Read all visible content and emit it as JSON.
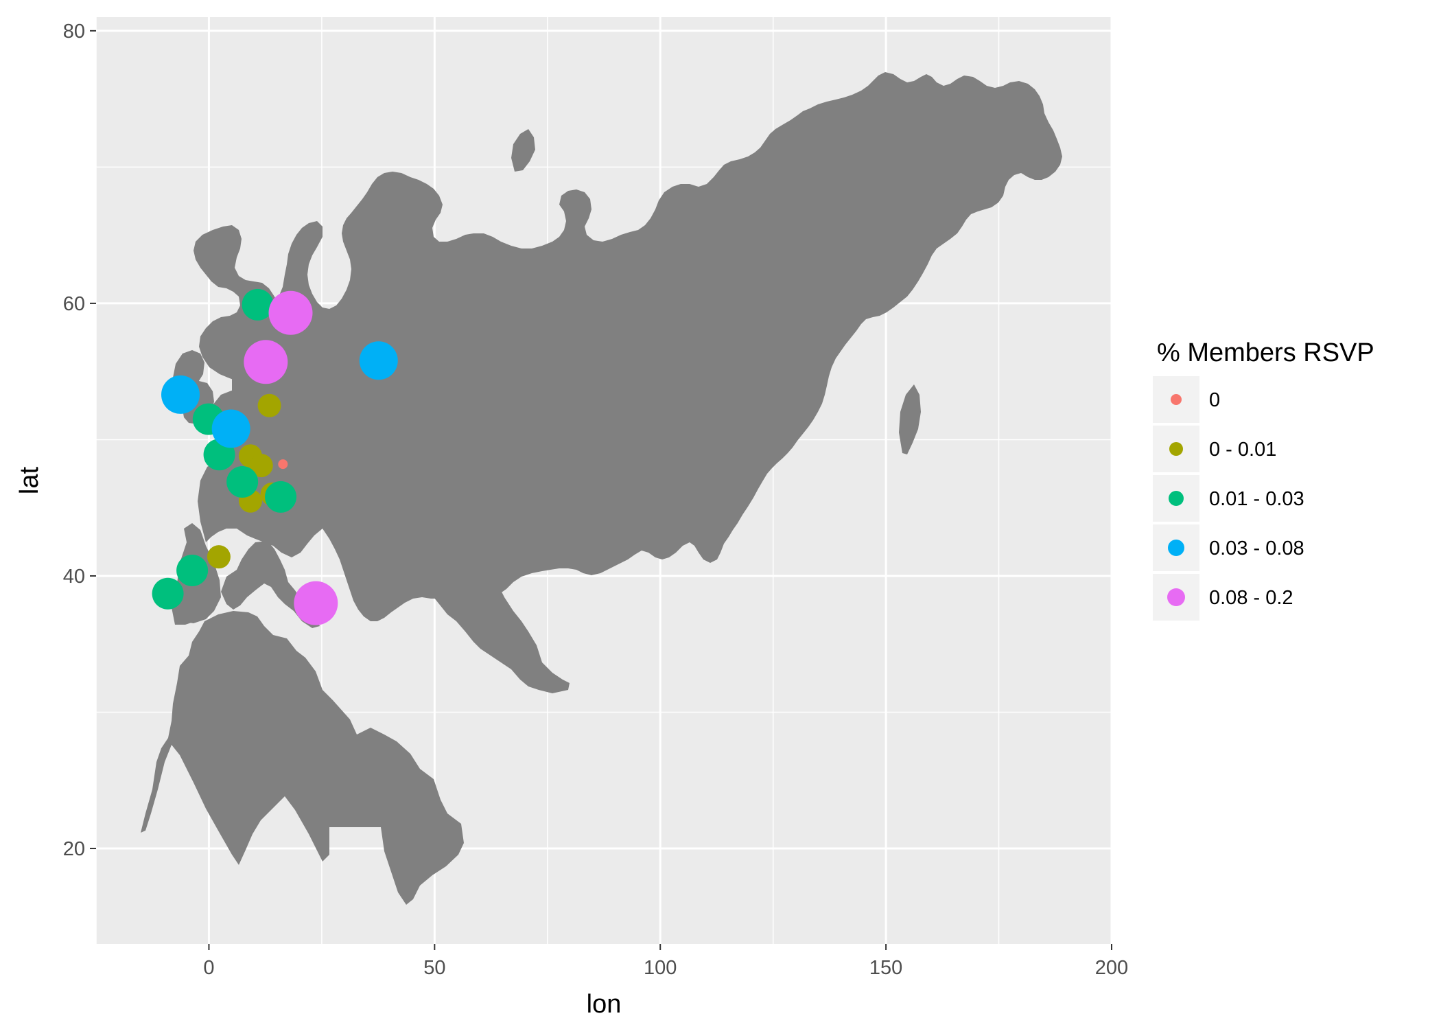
{
  "chart_data": {
    "type": "scatter",
    "xlabel": "lon",
    "ylabel": "lat",
    "xlim": [
      -25,
      200
    ],
    "ylim": [
      13,
      81
    ],
    "x_ticks": [
      0,
      50,
      100,
      150,
      200
    ],
    "x_minor_ticks": [
      -25,
      25,
      75,
      125,
      175
    ],
    "y_ticks": [
      20,
      40,
      60,
      80
    ],
    "y_minor_ticks": [
      30,
      50,
      70
    ],
    "grid": true,
    "background": "#ebebeb",
    "land_color": "#808080",
    "legend": {
      "title": "% Members RSVP",
      "placement": "right",
      "entries": [
        {
          "label": "0",
          "color": "#f8766d",
          "size": 1
        },
        {
          "label": "0 - 0.01",
          "color": "#a3a500",
          "size": 2
        },
        {
          "label": "0.01 - 0.03",
          "color": "#00bf7d",
          "size": 3
        },
        {
          "label": "0.03 - 0.08",
          "color": "#00b0f6",
          "size": 4
        },
        {
          "label": "0.08 - 0.2",
          "color": "#e76bf3",
          "size": 5
        }
      ]
    },
    "points": [
      {
        "lon": 16.4,
        "lat": 48.2,
        "group": 0
      },
      {
        "lon": 13.4,
        "lat": 52.5,
        "group": 1
      },
      {
        "lon": 9.2,
        "lat": 48.8,
        "group": 1
      },
      {
        "lon": 11.6,
        "lat": 48.1,
        "group": 1
      },
      {
        "lon": 9.2,
        "lat": 45.5,
        "group": 1
      },
      {
        "lon": 14.0,
        "lat": 46.0,
        "group": 1
      },
      {
        "lon": 2.2,
        "lat": 41.4,
        "group": 1
      },
      {
        "lon": 10.8,
        "lat": 59.9,
        "group": 2
      },
      {
        "lon": -0.1,
        "lat": 51.5,
        "group": 2
      },
      {
        "lon": 2.3,
        "lat": 48.9,
        "group": 2
      },
      {
        "lon": 7.4,
        "lat": 46.9,
        "group": 2
      },
      {
        "lon": 15.9,
        "lat": 45.8,
        "group": 2
      },
      {
        "lon": -3.7,
        "lat": 40.4,
        "group": 2
      },
      {
        "lon": -9.1,
        "lat": 38.7,
        "group": 2
      },
      {
        "lon": -6.3,
        "lat": 53.3,
        "group": 3
      },
      {
        "lon": 4.9,
        "lat": 50.8,
        "group": 3
      },
      {
        "lon": 37.6,
        "lat": 55.8,
        "group": 3
      },
      {
        "lon": 18.1,
        "lat": 59.3,
        "group": 4
      },
      {
        "lon": 12.6,
        "lat": 55.7,
        "group": 4
      },
      {
        "lon": 23.7,
        "lat": 38.0,
        "group": 4
      }
    ]
  }
}
